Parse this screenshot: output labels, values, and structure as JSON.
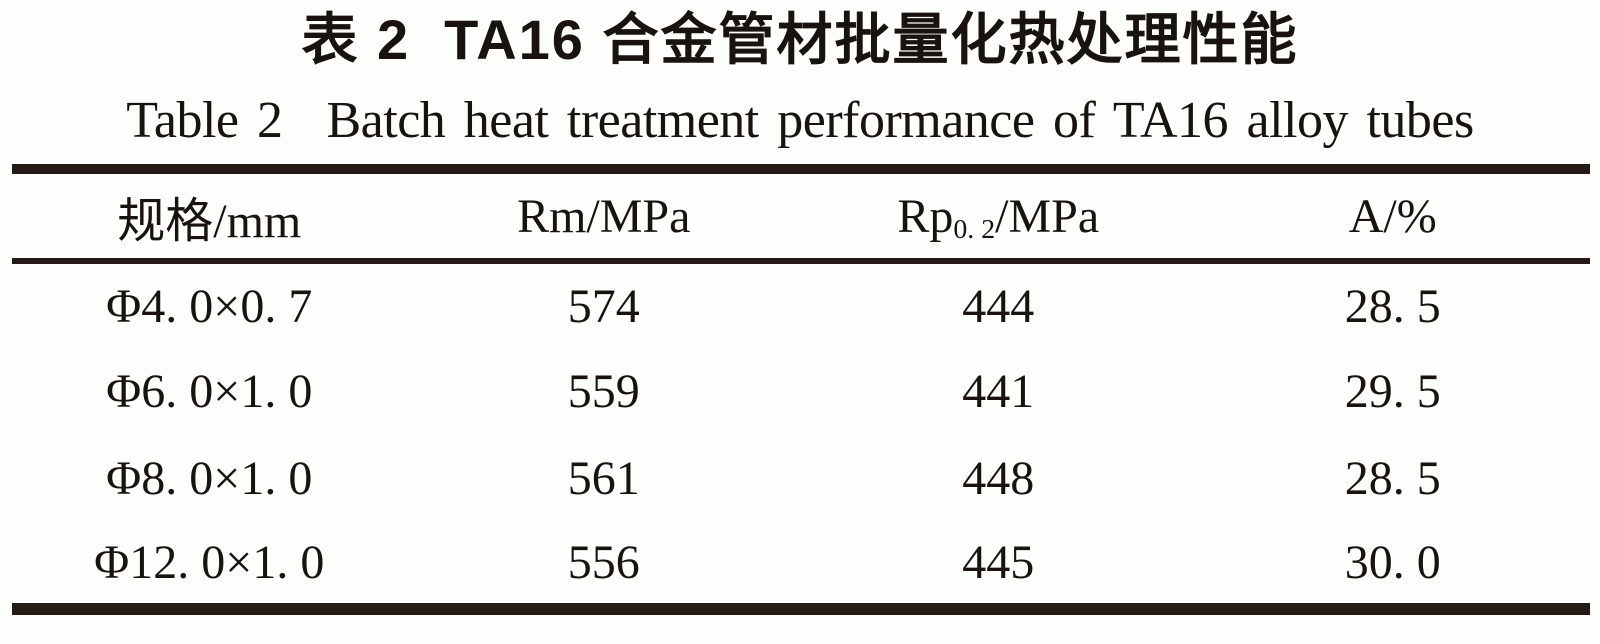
{
  "page": {
    "background": "#fdfdfc",
    "rule_color": "#241b16",
    "text_color": "#18130f"
  },
  "title_zh": {
    "label": "表 2",
    "text": "TA16 合金管材批量化热处理性能"
  },
  "title_en": {
    "label": "Table 2",
    "text": "Batch heat treatment performance of TA16 alloy tubes"
  },
  "table": {
    "headers": [
      {
        "text": "规格/mm"
      },
      {
        "text": "Rm/MPa"
      },
      {
        "pre": "Rp",
        "sub": "0. 2",
        "post": "/MPa"
      },
      {
        "text": "A/%"
      }
    ],
    "rows": [
      {
        "spec": "Φ4. 0×0. 7",
        "rm": "574",
        "rp02": "444",
        "a": "28. 5"
      },
      {
        "spec": "Φ6. 0×1. 0",
        "rm": "559",
        "rp02": "441",
        "a": "29. 5"
      },
      {
        "spec": "Φ8. 0×1. 0",
        "rm": "561",
        "rp02": "448",
        "a": "28. 5"
      },
      {
        "spec": "Φ12. 0×1. 0",
        "rm": "556",
        "rp02": "445",
        "a": "30. 0"
      }
    ]
  }
}
